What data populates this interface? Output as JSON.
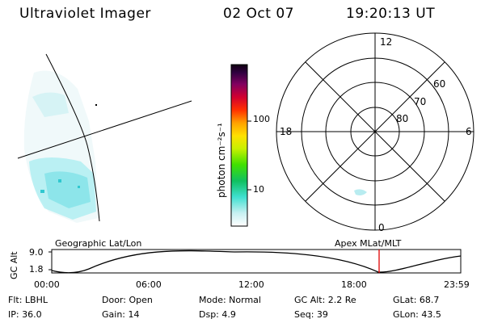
{
  "header": {
    "instrument": "Ultraviolet Imager",
    "date": "02 Oct 07",
    "time": "19:20:13 UT"
  },
  "colorbar": {
    "unit_label": "photon cm⁻²s⁻¹",
    "ticks": [
      "100",
      "10"
    ]
  },
  "polar_plot": {
    "mlt_labels": [
      "12",
      "18",
      "6",
      "0"
    ],
    "lat_labels": [
      "60",
      "70",
      "80"
    ]
  },
  "timeline": {
    "left_title": "Geographic Lat/Lon",
    "right_title": "Apex MLat/MLT",
    "y_axis_label": "GC Alt",
    "y_ticks": [
      "9.0",
      "1.8"
    ],
    "x_ticks": [
      "00:00",
      "06:00",
      "12:00",
      "18:00",
      "23:59"
    ],
    "marker_color": "#e00000"
  },
  "status": {
    "row1": {
      "flt": "Flt: LBHL",
      "door": "Door: Open",
      "mode": "Mode: Normal",
      "gc_alt": "GC Alt: 2.2 Re",
      "glat": "GLat:  68.7"
    },
    "row2": {
      "ip": "IP: 36.0",
      "gain": "Gain: 14",
      "dsp": "Dsp:    4.9",
      "seq": "Seq: 39",
      "glon": "GLon:  43.5"
    }
  }
}
